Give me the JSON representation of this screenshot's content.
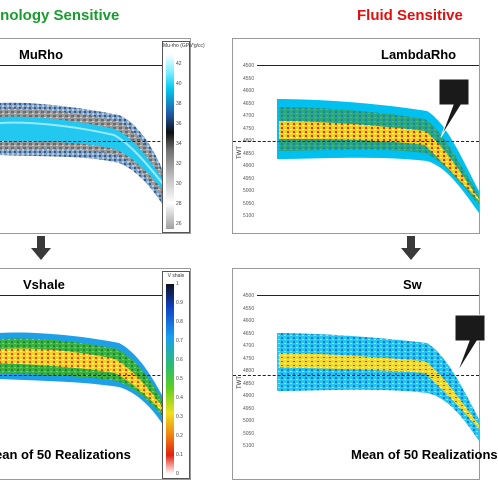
{
  "headers": {
    "left": "hnology Sensitive",
    "right": "Fluid Sensitive",
    "left_color": "#1a9b2f",
    "right_color": "#e01010"
  },
  "panels": {
    "murho": {
      "title": "MuRho",
      "colorbar": {
        "title": "Mu-rho (GPa*g/cc)",
        "ticks": [
          "42",
          "40",
          "38",
          "36",
          "34",
          "32",
          "30",
          "28",
          "26"
        ]
      }
    },
    "lambdarho": {
      "title": "LambdaRho",
      "y_label": "TWT",
      "y_ticks": [
        "4500",
        "4550",
        "4600",
        "4650",
        "4700",
        "4750",
        "4800",
        "4850",
        "4900",
        "4950",
        "5000",
        "5050",
        "5100"
      ]
    },
    "vshale": {
      "title": "Vshale",
      "footer": "ean of 50 Realizations",
      "colorbar": {
        "title": "V shale",
        "ticks": [
          "1",
          "0.9",
          "0.8",
          "0.7",
          "0.6",
          "0.5",
          "0.4",
          "0.3",
          "0.2",
          "0.1",
          "0"
        ]
      }
    },
    "sw": {
      "title": "Sw",
      "footer": "Mean of 50 Realizations",
      "y_label": "TWT",
      "y_ticks": [
        "4500",
        "4550",
        "4600",
        "4650",
        "4700",
        "4750",
        "4800",
        "4850",
        "4900",
        "4950",
        "5000",
        "5050",
        "5100"
      ]
    }
  },
  "icons": {
    "down_arrow": "down-arrow-icon",
    "callout": "callout-pointer-icon"
  }
}
